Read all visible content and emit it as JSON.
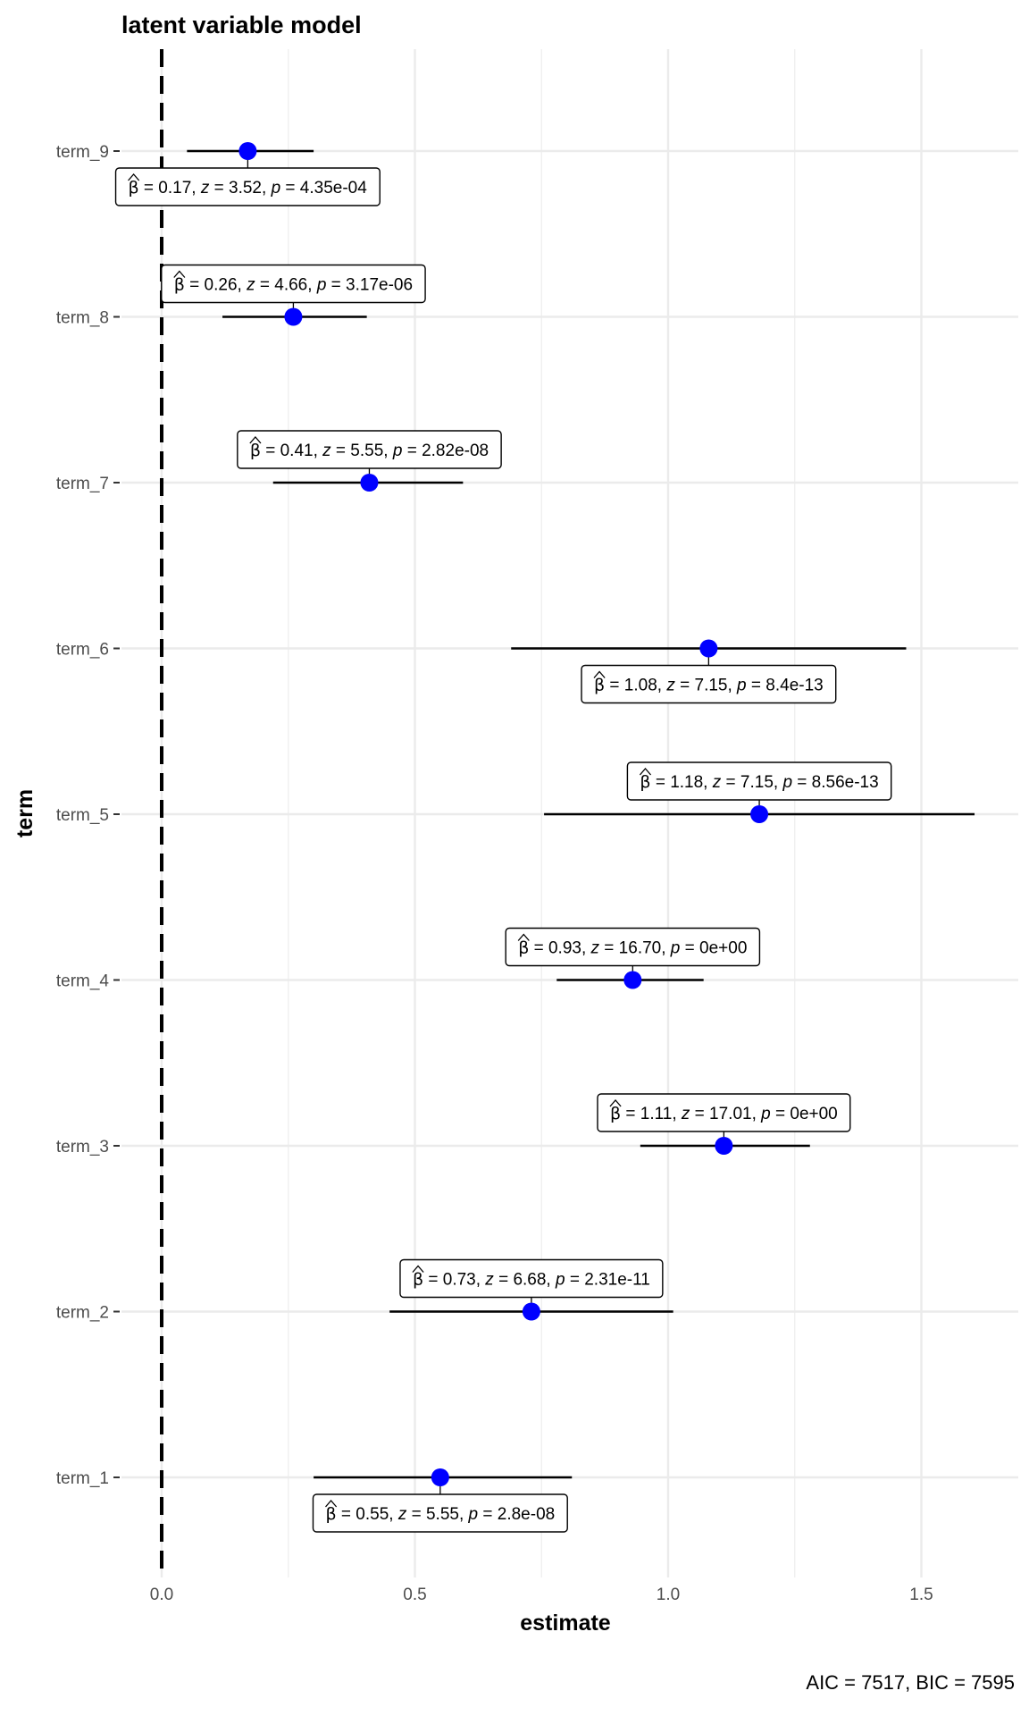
{
  "chart_data": {
    "type": "scatter",
    "title": "latent variable model",
    "xlabel": "estimate",
    "ylabel": "term",
    "caption": "AIC = 7517, BIC = 7595",
    "xlim": [
      -0.05,
      1.68
    ],
    "xticks": [
      0.0,
      0.5,
      1.0,
      1.5
    ],
    "xtick_labels": [
      "0.0",
      "0.5",
      "1.0",
      "1.5"
    ],
    "reference_line_x": 0,
    "grid": true,
    "point_color": "#0000ff",
    "terms": [
      {
        "term": "term_1",
        "estimate": 0.55,
        "ci_low": 0.3,
        "ci_high": 0.81,
        "beta": "0.55",
        "z": "5.55",
        "p": "2.8e-08",
        "label_pos": "below"
      },
      {
        "term": "term_2",
        "estimate": 0.73,
        "ci_low": 0.45,
        "ci_high": 1.01,
        "beta": "0.73",
        "z": "6.68",
        "p": "2.31e-11",
        "label_pos": "above"
      },
      {
        "term": "term_3",
        "estimate": 1.11,
        "ci_low": 0.945,
        "ci_high": 1.28,
        "beta": "1.11",
        "z": "17.01",
        "p": "0e+00",
        "label_pos": "above"
      },
      {
        "term": "term_4",
        "estimate": 0.93,
        "ci_low": 0.78,
        "ci_high": 1.07,
        "beta": "0.93",
        "z": "16.70",
        "p": "0e+00",
        "label_pos": "above"
      },
      {
        "term": "term_5",
        "estimate": 1.18,
        "ci_low": 0.755,
        "ci_high": 1.605,
        "beta": "1.18",
        "z": "7.15",
        "p": "8.56e-13",
        "label_pos": "above"
      },
      {
        "term": "term_6",
        "estimate": 1.08,
        "ci_low": 0.69,
        "ci_high": 1.47,
        "beta": "1.08",
        "z": "7.15",
        "p": "8.4e-13",
        "label_pos": "below"
      },
      {
        "term": "term_7",
        "estimate": 0.41,
        "ci_low": 0.22,
        "ci_high": 0.595,
        "beta": "0.41",
        "z": "5.55",
        "p": "2.82e-08",
        "label_pos": "above"
      },
      {
        "term": "term_8",
        "estimate": 0.26,
        "ci_low": 0.12,
        "ci_high": 0.405,
        "beta": "0.26",
        "z": "4.66",
        "p": "3.17e-06",
        "label_pos": "above"
      },
      {
        "term": "term_9",
        "estimate": 0.17,
        "ci_low": 0.05,
        "ci_high": 0.3,
        "beta": "0.17",
        "z": "3.52",
        "p": "4.35e-04",
        "label_pos": "below"
      }
    ]
  }
}
